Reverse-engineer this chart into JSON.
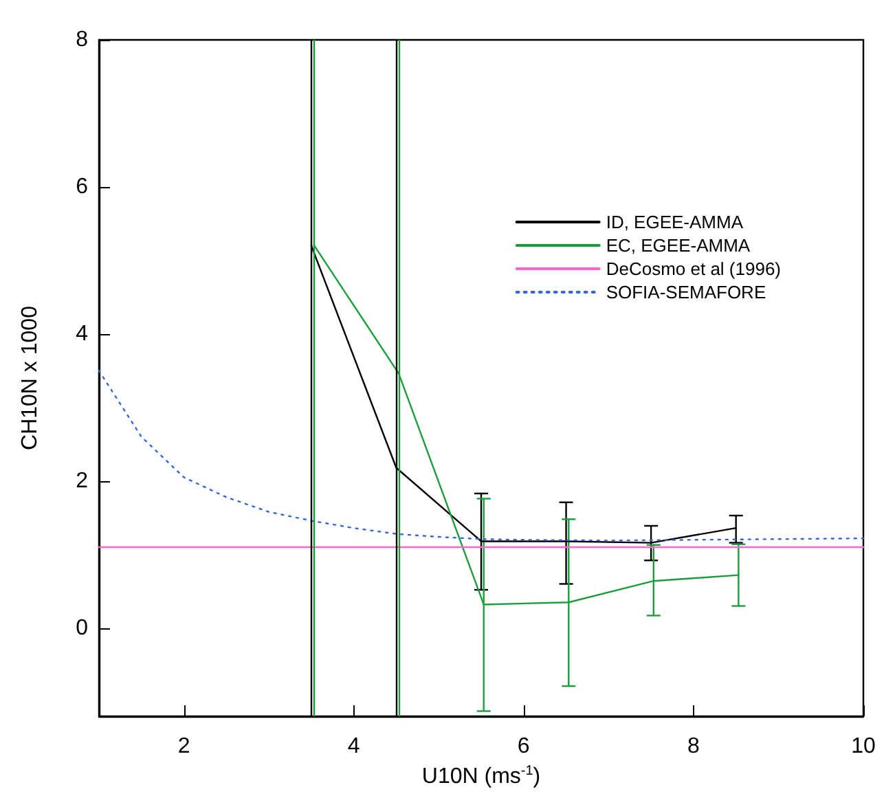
{
  "chart_data": {
    "type": "line",
    "xlabel": "U10N (ms$^{-1}$)",
    "ylabel": "CH10N x 1000",
    "xlim": [
      1,
      10
    ],
    "xticks": [
      2,
      4,
      6,
      8,
      10
    ],
    "ylim": [
      -1.2,
      8
    ],
    "yticks": [
      0,
      2,
      4,
      6,
      8
    ],
    "grid": false,
    "legend": "top right",
    "marker": "none",
    "series": [
      {
        "name": "ID, EGEE-AMMA",
        "color": "#000000",
        "x": [
          3.5,
          4.5,
          5.5,
          6.5,
          7.5,
          8.5
        ],
        "values": [
          5.2,
          2.18,
          1.18,
          1.18,
          1.16,
          1.36
        ],
        "errors": [
          null,
          null,
          [
            0.52,
            1.83
          ],
          [
            0.6,
            1.71
          ],
          [
            0.92,
            1.39
          ],
          [
            1.16,
            1.53
          ]
        ]
      },
      {
        "name": "EC, EGEE-AMMA",
        "color": "#1a9e3a",
        "x": [
          3.53,
          4.53,
          5.53,
          6.53,
          7.53,
          8.53
        ],
        "values": [
          5.21,
          3.46,
          0.32,
          0.35,
          0.64,
          0.72
        ],
        "errors": [
          null,
          null,
          [
            -1.13,
            1.76
          ],
          [
            -0.79,
            1.48
          ],
          [
            0.17,
            1.13
          ],
          [
            0.3,
            1.14
          ]
        ]
      },
      {
        "name": "DeCosmo et al (1996)",
        "color": "#ff66cc",
        "x": [
          1,
          10
        ],
        "values": [
          1.1,
          1.1
        ]
      },
      {
        "name": "SOFIA-SEMAFORE",
        "color": "#3366dd",
        "line_style": "dotted",
        "x": [
          1,
          1.5,
          2,
          2.5,
          3,
          3.5,
          4,
          4.5,
          5,
          5.5,
          6,
          7,
          8,
          9,
          10
        ],
        "values": [
          3.5,
          2.6,
          2.05,
          1.78,
          1.58,
          1.46,
          1.36,
          1.28,
          1.24,
          1.21,
          1.2,
          1.19,
          1.2,
          1.21,
          1.22
        ]
      }
    ],
    "ref_lines": [
      {
        "axis": "x",
        "value": 3.5,
        "color": "#000000"
      },
      {
        "axis": "x",
        "value": 3.53,
        "color": "#1a9e3a"
      },
      {
        "axis": "x",
        "value": 4.5,
        "color": "#000000"
      },
      {
        "axis": "x",
        "value": 4.53,
        "color": "#1a9e3a"
      }
    ]
  }
}
